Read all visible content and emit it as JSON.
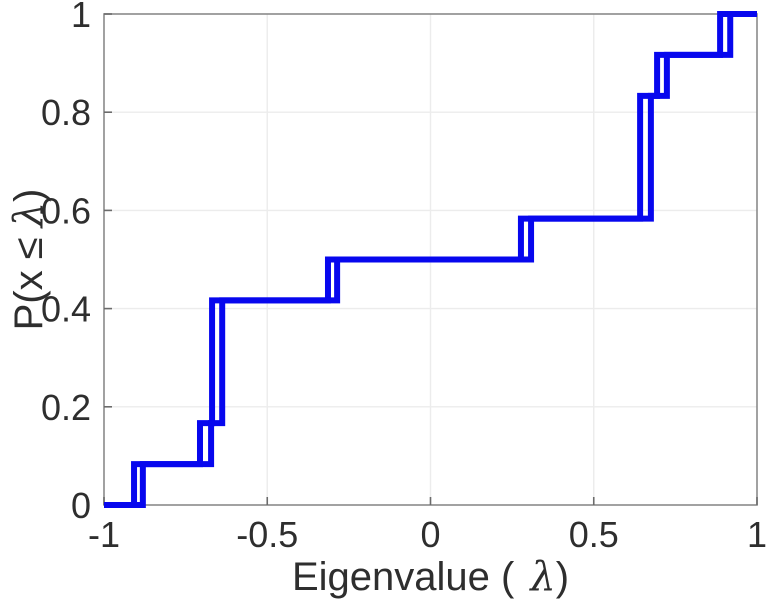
{
  "figure": {
    "background": "#ffffff",
    "line_color": "#0707ee",
    "axis_color": "#8a8a8a",
    "grid_color": "#ececec",
    "tick_color": "#6b6b6b",
    "text_color": "#2e2e2e"
  },
  "chart_data": {
    "type": "step",
    "subtype": "empirical-cdf",
    "title": "",
    "xlabel": "Eigenvalue ( λ)",
    "xlabel_parts": {
      "pre": "Eigenvalue (",
      "lambda": "λ",
      "post": ")"
    },
    "ylabel": "P(x ≤ λ)",
    "ylabel_parts": {
      "pre": "P(x ≤",
      "lambda": "λ",
      "post": ")"
    },
    "xlim": [
      -1,
      1
    ],
    "ylim": [
      0,
      1
    ],
    "xticks": [
      -1,
      -0.5,
      0,
      0.5,
      1
    ],
    "xtick_labels": [
      "-1",
      "-0.5",
      "0",
      "0.5",
      "1"
    ],
    "yticks": [
      0,
      0.2,
      0.4,
      0.6,
      0.8,
      1
    ],
    "ytick_labels": [
      "0",
      "0.2",
      "0.4",
      "0.6",
      "0.8",
      "1"
    ],
    "grid": true,
    "legend": null,
    "line_width": 6,
    "levels": [
      0.0833,
      0.1667,
      0.4167,
      0.5,
      0.5833,
      0.8333,
      0.9167,
      1
    ],
    "series": [
      {
        "name": "ecdf-curve-1",
        "start": [
          -1,
          0
        ],
        "end": [
          1,
          1
        ],
        "jump_x": [
          -0.908,
          -0.706,
          -0.669,
          -0.314,
          0.277,
          0.642,
          0.694,
          0.887
        ]
      },
      {
        "name": "ecdf-curve-2",
        "start": [
          -1,
          0
        ],
        "end": [
          1,
          1
        ],
        "jump_x": [
          -0.881,
          -0.672,
          -0.638,
          -0.286,
          0.308,
          0.675,
          0.724,
          0.918
        ]
      }
    ]
  }
}
